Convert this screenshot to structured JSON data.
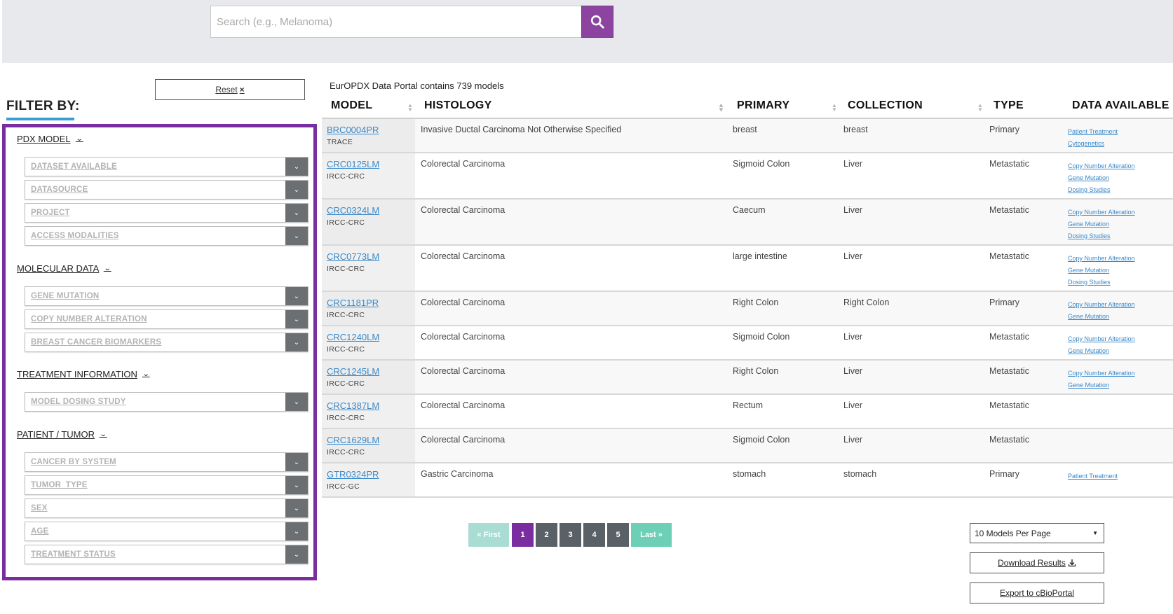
{
  "search": {
    "placeholder": "Search (e.g., Melanoma)"
  },
  "filters": {
    "reset_label": "Reset",
    "reset_icon": "×",
    "heading": "FILTER BY:",
    "sections": [
      {
        "title": "PDX MODEL",
        "items": [
          "DATASET AVAILABLE",
          "DATASOURCE",
          "PROJECT",
          "ACCESS MODALITIES"
        ]
      },
      {
        "title": "MOLECULAR DATA",
        "items": [
          "GENE MUTATION",
          "COPY NUMBER ALTERATION",
          "BREAST CANCER BIOMARKERS"
        ]
      },
      {
        "title": "TREATMENT INFORMATION",
        "items": [
          "MODEL DOSING STUDY"
        ]
      },
      {
        "title": "PATIENT / TUMOR",
        "items": [
          "CANCER BY SYSTEM",
          "TUMOR_TYPE",
          "SEX",
          "AGE",
          "TREATMENT STATUS"
        ]
      }
    ]
  },
  "results": {
    "summary": "EurOPDX Data Portal contains 739 models",
    "columns": [
      "MODEL",
      "HISTOLOGY",
      "PRIMARY",
      "COLLECTION",
      "TYPE",
      "DATA AVAILABLE"
    ],
    "rows": [
      {
        "model": "BRC0004PR",
        "source": "TRACE",
        "histology": "Invasive Ductal Carcinoma Not Otherwise Specified",
        "primary": "breast",
        "collection": "breast",
        "type": "Primary",
        "data": [
          "Patient Treatment",
          "Cytogenetics"
        ]
      },
      {
        "model": "CRC0125LM",
        "source": "IRCC-CRC",
        "histology": "Colorectal Carcinoma",
        "primary": "Sigmoid Colon",
        "collection": "Liver",
        "type": "Metastatic",
        "data": [
          "Copy Number Alteration",
          "Gene Mutation",
          "Dosing Studies"
        ]
      },
      {
        "model": "CRC0324LM",
        "source": "IRCC-CRC",
        "histology": "Colorectal Carcinoma",
        "primary": "Caecum",
        "collection": "Liver",
        "type": "Metastatic",
        "data": [
          "Copy Number Alteration",
          "Gene Mutation",
          "Dosing Studies"
        ]
      },
      {
        "model": "CRC0773LM",
        "source": "IRCC-CRC",
        "histology": "Colorectal Carcinoma",
        "primary": "large intestine",
        "collection": "Liver",
        "type": "Metastatic",
        "data": [
          "Copy Number Alteration",
          "Gene Mutation",
          "Dosing Studies"
        ]
      },
      {
        "model": "CRC1181PR",
        "source": "IRCC-CRC",
        "histology": "Colorectal Carcinoma",
        "primary": "Right Colon",
        "collection": "Right Colon",
        "type": "Primary",
        "data": [
          "Copy Number Alteration",
          "Gene Mutation"
        ]
      },
      {
        "model": "CRC1240LM",
        "source": "IRCC-CRC",
        "histology": "Colorectal Carcinoma",
        "primary": "Sigmoid Colon",
        "collection": "Liver",
        "type": "Metastatic",
        "data": [
          "Copy Number Alteration",
          "Gene Mutation"
        ]
      },
      {
        "model": "CRC1245LM",
        "source": "IRCC-CRC",
        "histology": "Colorectal Carcinoma",
        "primary": "Right Colon",
        "collection": "Liver",
        "type": "Metastatic",
        "data": [
          "Copy Number Alteration",
          "Gene Mutation"
        ]
      },
      {
        "model": "CRC1387LM",
        "source": "IRCC-CRC",
        "histology": "Colorectal Carcinoma",
        "primary": "Rectum",
        "collection": "Liver",
        "type": "Metastatic",
        "data": []
      },
      {
        "model": "CRC1629LM",
        "source": "IRCC-CRC",
        "histology": "Colorectal Carcinoma",
        "primary": "Sigmoid Colon",
        "collection": "Liver",
        "type": "Metastatic",
        "data": []
      },
      {
        "model": "GTR0324PR",
        "source": "IRCC-GC",
        "histology": "Gastric Carcinoma",
        "primary": "stomach",
        "collection": "stomach",
        "type": "Primary",
        "data": [
          "Patient Treatment"
        ]
      }
    ]
  },
  "pagination": {
    "first_label": "« First",
    "pages": [
      "1",
      "2",
      "3",
      "4",
      "5"
    ],
    "current": "1",
    "last_label": "Last »"
  },
  "controls": {
    "per_page": "10 Models Per Page",
    "download_label": "Download Results",
    "export_label": "Export to cBioPortal"
  },
  "colors": {
    "accent_purple": "#7a2da0",
    "link_blue": "#3a89c9",
    "filter_underline": "#3a9dd6",
    "pager_teal": "#6ccfb6",
    "pager_gray": "#596066"
  }
}
